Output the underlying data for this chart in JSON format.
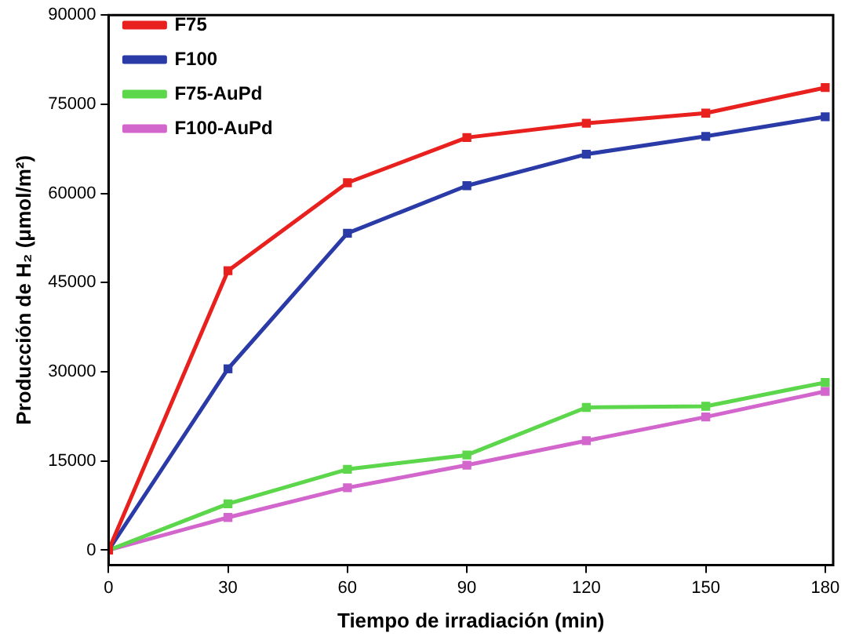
{
  "chart_data": {
    "type": "line",
    "xlabel": "Tiempo de irradiación (min)",
    "ylabel": "Producción de H₂ (μmol/m²)",
    "x": [
      0,
      30,
      60,
      90,
      120,
      150,
      180
    ],
    "xlim": [
      0,
      182
    ],
    "xticks": [
      0,
      30,
      60,
      90,
      120,
      150,
      180
    ],
    "ylim": [
      -2500,
      90000
    ],
    "yticks": [
      0,
      15000,
      30000,
      45000,
      60000,
      75000,
      90000
    ],
    "marker": "square",
    "line_style": "solid",
    "grid": false,
    "legend": "top left",
    "series": [
      {
        "name": "F75",
        "color": "#e8201e",
        "values": [
          0,
          47000,
          61800,
          69400,
          71800,
          73500,
          77800
        ]
      },
      {
        "name": "F100",
        "color": "#2a3aa6",
        "values": [
          0,
          30500,
          53300,
          61300,
          66600,
          69600,
          72900
        ]
      },
      {
        "name": "F75-AuPd",
        "color": "#5cd64a",
        "values": [
          0,
          7800,
          13600,
          16000,
          24000,
          24200,
          28200
        ]
      },
      {
        "name": "F100-AuPd",
        "color": "#d266cc",
        "values": [
          0,
          5500,
          10500,
          14300,
          18400,
          22400,
          26700
        ]
      }
    ]
  }
}
